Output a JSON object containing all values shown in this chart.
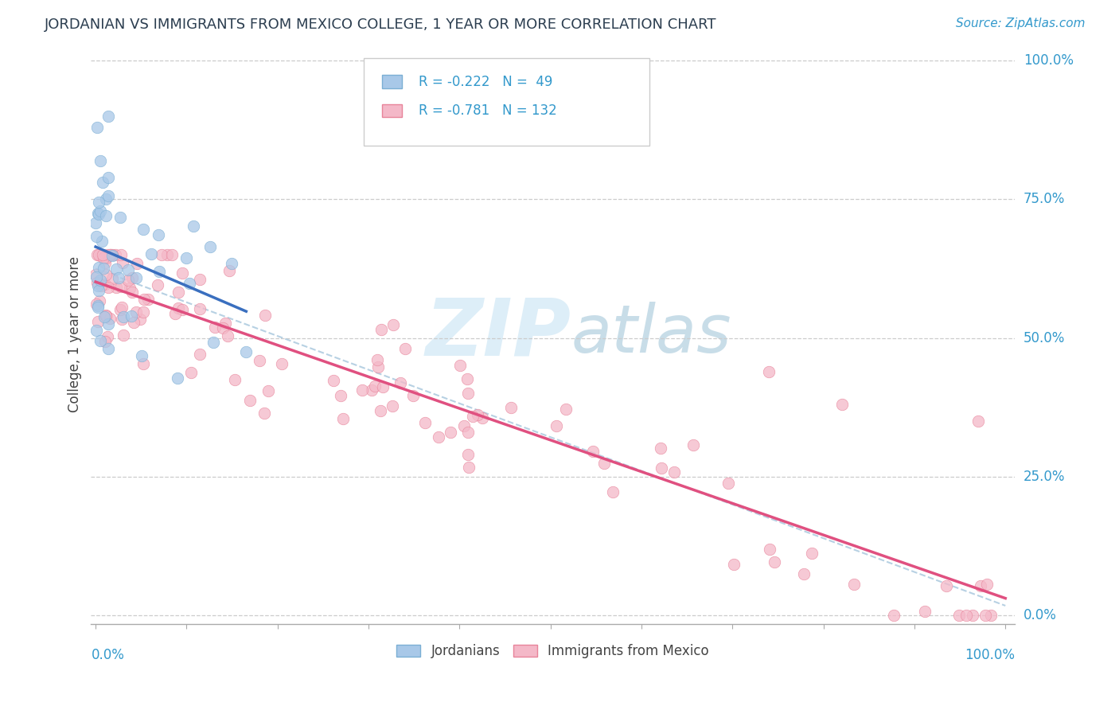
{
  "title": "JORDANIAN VS IMMIGRANTS FROM MEXICO COLLEGE, 1 YEAR OR MORE CORRELATION CHART",
  "source_text": "Source: ZipAtlas.com",
  "ylabel": "College, 1 year or more",
  "y_tick_labels": [
    "0.0%",
    "25.0%",
    "50.0%",
    "75.0%",
    "100.0%"
  ],
  "y_tick_values": [
    0.0,
    0.25,
    0.5,
    0.75,
    1.0
  ],
  "blue_color": "#a8c8e8",
  "blue_edge_color": "#7bafd4",
  "pink_color": "#f4b8c8",
  "pink_edge_color": "#e8849a",
  "blue_line_color": "#3a6fbf",
  "pink_line_color": "#e05080",
  "dashed_line_color": "#b0cce0",
  "title_color": "#2c3e50",
  "source_color": "#3399cc",
  "right_label_color": "#3399cc",
  "legend_text_color": "#3399cc",
  "background_color": "#ffffff",
  "watermark_color": "#ddeef8",
  "seed": 42
}
